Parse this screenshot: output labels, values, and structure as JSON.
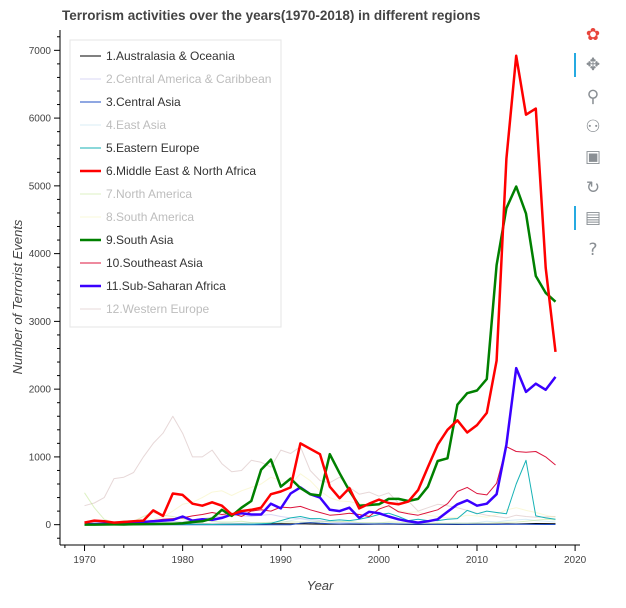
{
  "chart_data": {
    "type": "line",
    "title": "Terrorism activities over the years(1970-2018) in different regions",
    "xlabel": "Year",
    "ylabel": "Number of Terrorist Events",
    "xlim": [
      1967.5,
      2020.5
    ],
    "ylim": [
      -300,
      7300
    ],
    "x_ticks": [
      1970,
      1980,
      1990,
      2000,
      2010,
      2020
    ],
    "y_ticks": [
      0,
      1000,
      2000,
      3000,
      4000,
      5000,
      6000,
      7000
    ],
    "grid": false,
    "legend_position": "top-left",
    "x": [
      1970,
      1971,
      1972,
      1973,
      1974,
      1975,
      1976,
      1977,
      1978,
      1979,
      1980,
      1981,
      1982,
      1983,
      1984,
      1985,
      1986,
      1987,
      1988,
      1989,
      1990,
      1991,
      1992,
      1993,
      1994,
      1995,
      1996,
      1997,
      1998,
      1999,
      2000,
      2001,
      2002,
      2003,
      2004,
      2005,
      2006,
      2007,
      2008,
      2009,
      2010,
      2011,
      2012,
      2013,
      2014,
      2015,
      2016,
      2017,
      2018
    ],
    "series": [
      {
        "name": "1.Australasia & Oceania",
        "color": "#000000",
        "width": 1,
        "muted": false,
        "values": [
          1,
          1,
          1,
          1,
          1,
          1,
          2,
          3,
          4,
          5,
          6,
          7,
          5,
          4,
          5,
          6,
          8,
          7,
          10,
          12,
          15,
          12,
          14,
          10,
          8,
          6,
          5,
          6,
          4,
          5,
          8,
          10,
          6,
          4,
          3,
          4,
          5,
          4,
          3,
          4,
          5,
          6,
          8,
          12,
          10,
          14,
          18,
          16,
          14
        ]
      },
      {
        "name": "2.Central America & Caribbean",
        "color": "#a9a6e6",
        "width": 1,
        "muted": true,
        "values": [
          7,
          7,
          6,
          8,
          10,
          12,
          15,
          20,
          35,
          50,
          40,
          70,
          90,
          110,
          130,
          150,
          130,
          120,
          140,
          150,
          120,
          100,
          90,
          80,
          60,
          40,
          30,
          25,
          20,
          15,
          10,
          8,
          6,
          5,
          4,
          4,
          3,
          3,
          3,
          3,
          2,
          2,
          3,
          3,
          4,
          4,
          3,
          3,
          3
        ]
      },
      {
        "name": "3.Central Asia",
        "color": "#1f4fc4",
        "width": 1,
        "muted": false,
        "values": [
          0,
          0,
          0,
          0,
          0,
          0,
          0,
          0,
          0,
          0,
          0,
          0,
          0,
          0,
          0,
          0,
          0,
          0,
          0,
          0,
          0,
          0,
          20,
          30,
          20,
          15,
          10,
          12,
          10,
          8,
          12,
          15,
          10,
          8,
          6,
          5,
          4,
          6,
          5,
          4,
          6,
          5,
          4,
          5,
          6,
          5,
          4,
          3,
          3
        ]
      },
      {
        "name": "4.East Asia",
        "color": "#a9d8ea",
        "width": 1,
        "muted": true,
        "values": [
          2,
          4,
          3,
          5,
          8,
          6,
          10,
          12,
          8,
          15,
          20,
          15,
          10,
          20,
          30,
          25,
          20,
          30,
          25,
          20,
          30,
          60,
          90,
          60,
          40,
          50,
          40,
          30,
          25,
          20,
          30,
          20,
          15,
          10,
          8,
          10,
          12,
          15,
          20,
          25,
          30,
          50,
          40,
          60,
          70,
          80,
          60,
          50,
          40
        ]
      },
      {
        "name": "5.Eastern Europe",
        "color": "#17b2b6",
        "width": 1,
        "muted": false,
        "values": [
          2,
          3,
          1,
          2,
          3,
          2,
          5,
          4,
          3,
          5,
          6,
          5,
          4,
          3,
          4,
          5,
          6,
          8,
          15,
          20,
          60,
          100,
          120,
          90,
          90,
          60,
          70,
          60,
          80,
          110,
          150,
          170,
          120,
          60,
          80,
          60,
          60,
          80,
          90,
          210,
          160,
          200,
          180,
          160,
          600,
          950,
          130,
          100,
          80
        ]
      },
      {
        "name": "6.Middle East & North Africa",
        "color": "#ff0000",
        "width": 2.5,
        "muted": false,
        "values": [
          30,
          60,
          50,
          30,
          40,
          50,
          60,
          210,
          130,
          460,
          440,
          310,
          280,
          330,
          280,
          150,
          200,
          220,
          250,
          450,
          490,
          550,
          1200,
          1120,
          1040,
          560,
          390,
          540,
          240,
          310,
          370,
          320,
          300,
          340,
          510,
          850,
          1180,
          1400,
          1540,
          1360,
          1470,
          1650,
          2420,
          5400,
          6920,
          6050,
          6140,
          3790,
          2550
        ]
      },
      {
        "name": "7.North America",
        "color": "#b4e07a",
        "width": 1,
        "muted": true,
        "values": [
          470,
          250,
          80,
          30,
          60,
          50,
          120,
          180,
          140,
          120,
          90,
          60,
          70,
          50,
          40,
          40,
          50,
          30,
          30,
          35,
          40,
          40,
          40,
          35,
          45,
          40,
          45,
          50,
          30,
          30,
          25,
          40,
          35,
          30,
          20,
          20,
          25,
          20,
          25,
          20,
          25,
          22,
          30,
          35,
          38,
          50,
          65,
          80,
          70
        ]
      },
      {
        "name": "8.South America",
        "color": "#f5f0a8",
        "width": 1,
        "muted": true,
        "values": [
          40,
          30,
          25,
          30,
          35,
          50,
          60,
          80,
          110,
          200,
          300,
          330,
          400,
          480,
          500,
          430,
          500,
          550,
          600,
          700,
          650,
          600,
          750,
          650,
          500,
          400,
          350,
          340,
          310,
          300,
          280,
          260,
          210,
          180,
          190,
          140,
          120,
          100,
          110,
          140,
          130,
          110,
          150,
          220,
          250,
          210,
          180,
          140,
          110
        ]
      },
      {
        "name": "9.South Asia",
        "color": "#008000",
        "width": 2.5,
        "muted": false,
        "values": [
          1,
          1,
          2,
          4,
          3,
          5,
          8,
          10,
          12,
          15,
          20,
          40,
          50,
          90,
          220,
          130,
          250,
          350,
          810,
          960,
          560,
          680,
          540,
          450,
          430,
          1040,
          760,
          500,
          280,
          290,
          300,
          380,
          380,
          350,
          380,
          560,
          940,
          980,
          1770,
          1940,
          1980,
          2150,
          3830,
          4670,
          4990,
          4590,
          3670,
          3420,
          3290
        ]
      },
      {
        "name": "10.Southeast Asia",
        "color": "#dc143c",
        "width": 1,
        "muted": false,
        "values": [
          10,
          15,
          25,
          30,
          20,
          30,
          50,
          60,
          80,
          90,
          100,
          130,
          150,
          180,
          150,
          170,
          120,
          200,
          220,
          200,
          260,
          250,
          270,
          220,
          180,
          140,
          150,
          170,
          150,
          120,
          230,
          280,
          190,
          160,
          140,
          180,
          220,
          310,
          490,
          550,
          460,
          440,
          610,
          1150,
          1080,
          1070,
          1080,
          1000,
          880
        ]
      },
      {
        "name": "11.Sub-Saharan Africa",
        "color": "#3a00ff",
        "width": 2.5,
        "muted": false,
        "values": [
          5,
          10,
          15,
          20,
          25,
          30,
          40,
          50,
          60,
          70,
          120,
          60,
          80,
          70,
          100,
          150,
          170,
          150,
          150,
          310,
          240,
          460,
          550,
          450,
          400,
          220,
          200,
          250,
          100,
          190,
          170,
          120,
          80,
          50,
          30,
          50,
          80,
          190,
          300,
          360,
          280,
          310,
          450,
          1180,
          2310,
          1960,
          2080,
          1990,
          2180
        ]
      },
      {
        "name": "12.Western Europe",
        "color": "#c9a8a8",
        "width": 1,
        "muted": true,
        "values": [
          280,
          320,
          400,
          680,
          700,
          770,
          1000,
          1200,
          1350,
          1600,
          1350,
          1000,
          1000,
          1100,
          900,
          780,
          800,
          950,
          920,
          850,
          1100,
          1050,
          1150,
          800,
          650,
          620,
          700,
          550,
          450,
          480,
          420,
          470,
          320,
          350,
          200,
          250,
          300,
          280,
          250,
          210,
          170,
          140,
          120,
          100,
          140,
          120,
          110,
          115,
          120
        ]
      }
    ],
    "legend_labels": [
      "1.Australasia & Oceania",
      "2.Central America & Caribbean",
      "3.Central Asia",
      "4.East Asia",
      "5.Eastern Europe",
      "6.Middle East & North Africa",
      "7.North America",
      "8.South America",
      "9.South Asia",
      "10.Southeast Asia",
      "11.Sub-Saharan Africa",
      "12.Western Europe"
    ]
  },
  "toolbar": {
    "tools": [
      {
        "name": "bokeh-logo-icon",
        "glyph": "✿",
        "active": false
      },
      {
        "name": "pan-icon",
        "glyph": "✥",
        "active": true
      },
      {
        "name": "box-zoom-icon",
        "glyph": "⚲",
        "active": false
      },
      {
        "name": "wheel-zoom-icon",
        "glyph": "⚇",
        "active": false
      },
      {
        "name": "save-icon",
        "glyph": "▣",
        "active": false
      },
      {
        "name": "reset-icon",
        "glyph": "↻",
        "active": false
      },
      {
        "name": "hover-icon",
        "glyph": "▤",
        "active": true
      },
      {
        "name": "help-icon",
        "glyph": "?",
        "active": false
      }
    ]
  }
}
